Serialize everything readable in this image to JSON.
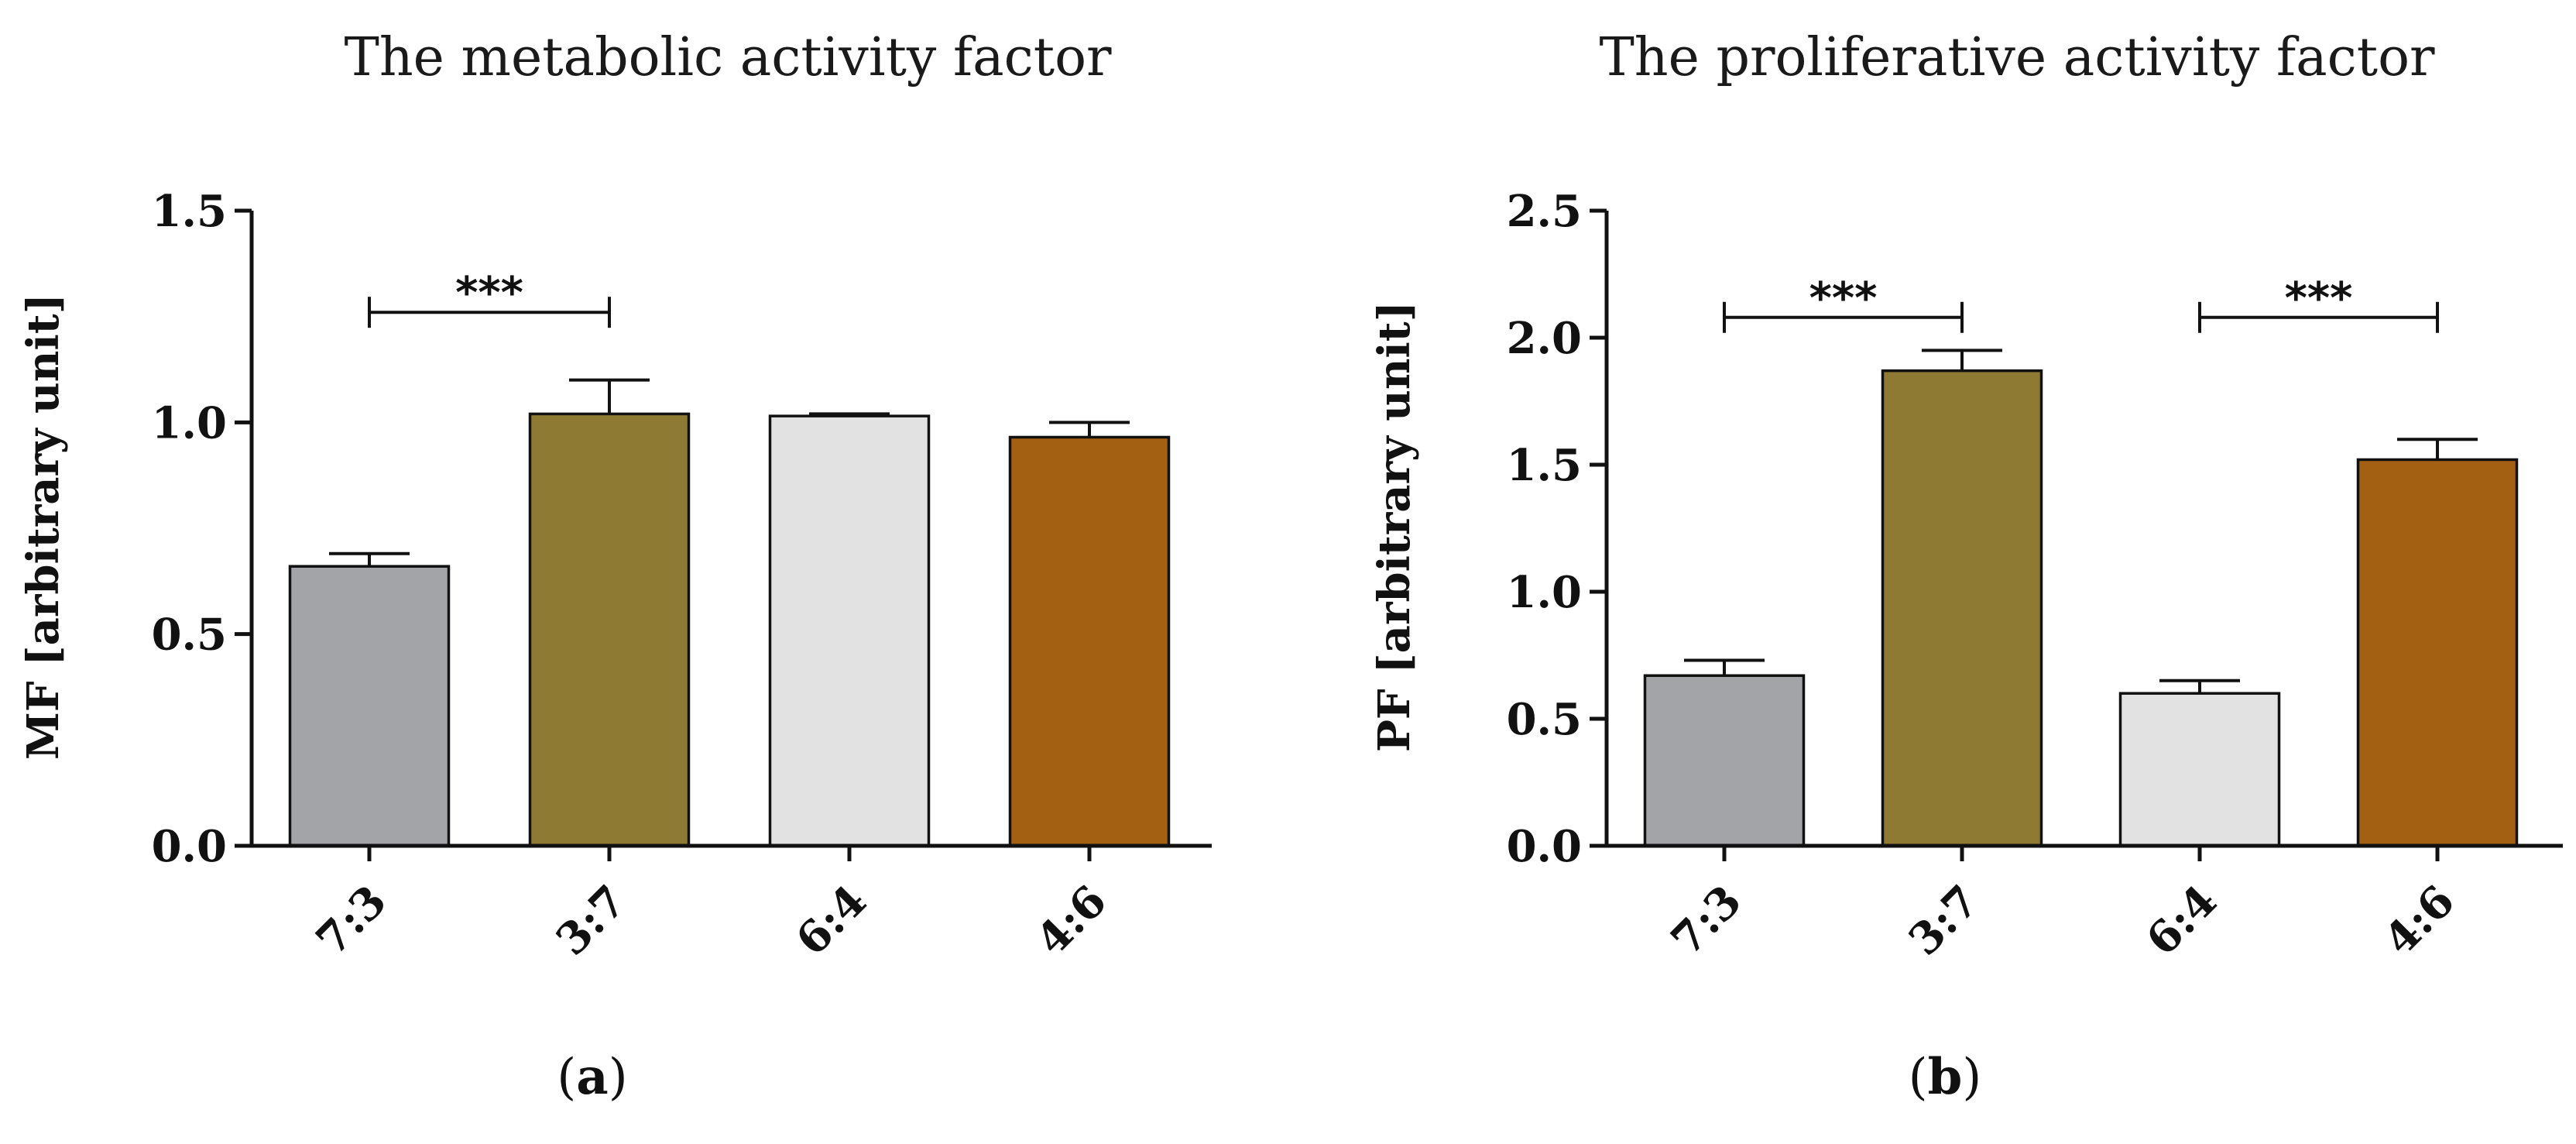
{
  "chart_data": [
    {
      "type": "bar",
      "panel": "a",
      "title": "The metabolic activity factor",
      "xlabel": "",
      "ylabel": "MF [arbitrary unit]",
      "ylim": [
        0,
        1.5
      ],
      "yticks": [
        "0.0",
        "0.5",
        "1.0",
        "1.5"
      ],
      "ytick_values": [
        0,
        0.5,
        1.0,
        1.5
      ],
      "categories": [
        "7:3",
        "3:7",
        "6:4",
        "4:6"
      ],
      "values": [
        0.66,
        1.02,
        1.015,
        0.965
      ],
      "errors": [
        0.03,
        0.08,
        0.005,
        0.035
      ],
      "colors": [
        "#a3a4a8",
        "#8f7a33",
        "#e2e2e2",
        "#a36012"
      ],
      "significance": [
        {
          "from": 0,
          "to": 1,
          "y": 1.26,
          "label": "***"
        }
      ]
    },
    {
      "type": "bar",
      "panel": "b",
      "title": "The proliferative activity factor",
      "xlabel": "",
      "ylabel": "PF [arbitrary unit]",
      "ylim": [
        0,
        2.5
      ],
      "yticks": [
        "0.0",
        "0.5",
        "1.0",
        "1.5",
        "2.0",
        "2.5"
      ],
      "ytick_values": [
        0,
        0.5,
        1.0,
        1.5,
        2.0,
        2.5
      ],
      "categories": [
        "7:3",
        "3:7",
        "6:4",
        "4:6"
      ],
      "values": [
        0.67,
        1.87,
        0.6,
        1.52
      ],
      "errors": [
        0.06,
        0.08,
        0.05,
        0.08
      ],
      "colors": [
        "#a3a4a8",
        "#8f7a33",
        "#e2e2e2",
        "#a36012"
      ],
      "significance": [
        {
          "from": 0,
          "to": 1,
          "y": 2.08,
          "label": "***"
        },
        {
          "from": 2,
          "to": 3,
          "y": 2.08,
          "label": "***"
        }
      ]
    }
  ]
}
